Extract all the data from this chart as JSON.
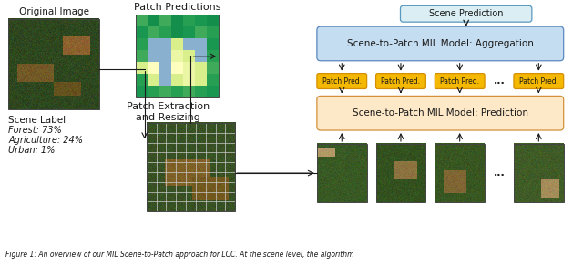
{
  "fig_width": 6.4,
  "fig_height": 2.92,
  "dpi": 100,
  "bg_color": "#ffffff",
  "caption": "Figure 1: An overview of our MIL Scene-to-Patch approach for LCC. At the scene level, the algorithm",
  "title_patch_pred": "Patch Predictions",
  "title_patch_extract": "Patch Extraction\nand Resizing",
  "label_original": "Original Image",
  "label_scene": "Scene Label",
  "label_forest": "Forest: 73%",
  "label_agri": "Agriculture: 24%",
  "label_urban": "Urban: 1%",
  "label_scene_pred": "Scene Prediction",
  "label_aggregation": "Scene-to-Patch MIL Model: Aggregation",
  "label_prediction": "Scene-to-Patch MIL Model: Prediction",
  "label_patch_pred": "Patch Pred.",
  "box_agg_color": "#c5ddf0",
  "box_pred_color": "#fde8c8",
  "box_scene_pred_color": "#daeef3",
  "box_patch_pred_color": "#f5b800",
  "box_patch_pred_ec": "#d49000",
  "arrow_color": "#1a1a1a",
  "text_color": "#1a1a1a",
  "dots_label": "...",
  "patch_pred_cmap": [
    [
      0.85,
      0.92,
      0.85,
      0.92,
      0.88,
      0.9,
      0.92
    ],
    [
      0.9,
      0.85,
      0.88,
      0.92,
      0.9,
      0.85,
      0.88
    ],
    [
      0.88,
      0.6,
      0.55,
      0.6,
      0.88,
      0.85,
      0.9
    ],
    [
      0.85,
      0.55,
      0.5,
      0.55,
      0.6,
      0.88,
      0.88
    ],
    [
      0.6,
      0.5,
      0.55,
      0.5,
      0.55,
      0.6,
      0.85
    ],
    [
      0.88,
      0.6,
      0.55,
      0.6,
      0.55,
      0.6,
      0.88
    ],
    [
      0.9,
      0.88,
      0.85,
      0.88,
      0.85,
      0.88,
      0.9
    ]
  ]
}
